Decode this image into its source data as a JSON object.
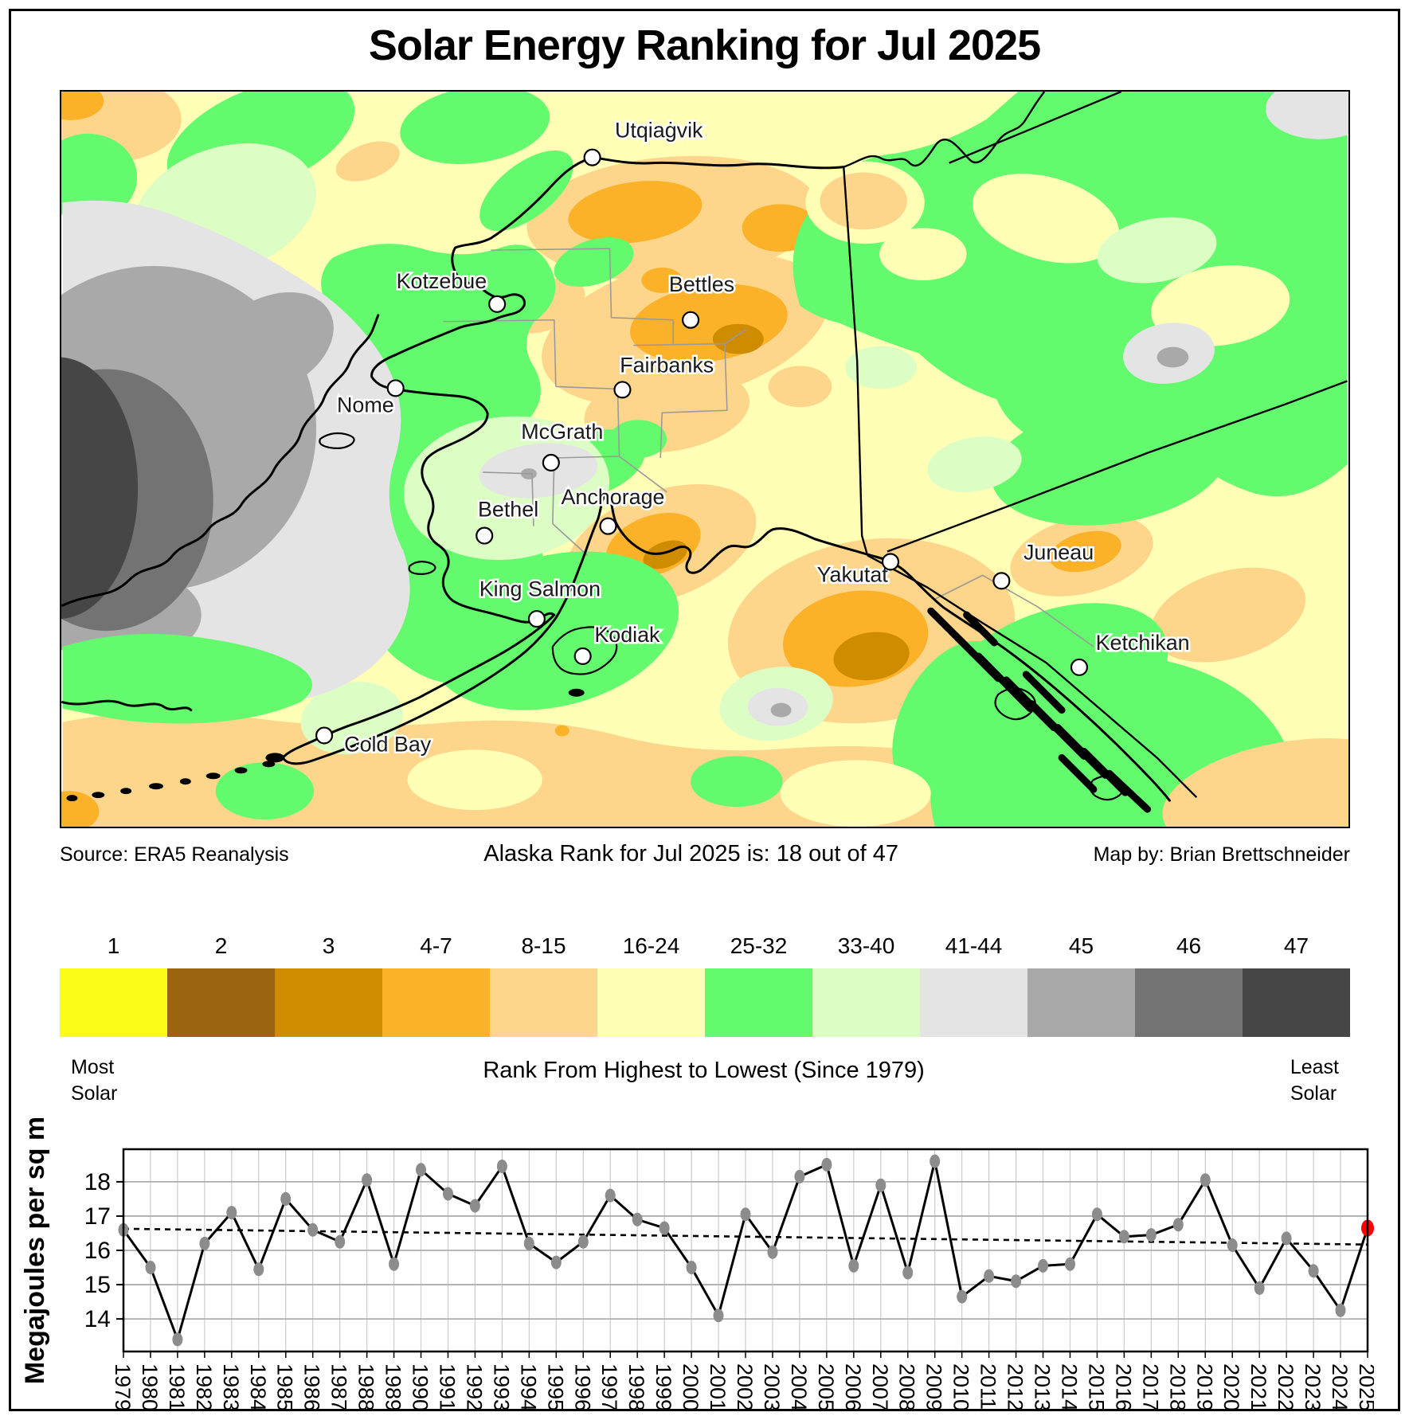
{
  "title": "Solar Energy Ranking for Jul 2025",
  "captions": {
    "source": "Source: ERA5 Reanalysis",
    "rank": "Alaska Rank for Jul 2025 is: 18 out of 47",
    "credit": "Map by: Brian Brettschneider"
  },
  "legend": {
    "items": [
      {
        "rank": "1",
        "color": "#FCFC19"
      },
      {
        "rank": "2",
        "color": "#9A6410"
      },
      {
        "rank": "3",
        "color": "#CF8C00"
      },
      {
        "rank": "4-7",
        "color": "#FBB128"
      },
      {
        "rank": "8-15",
        "color": "#FDD58B"
      },
      {
        "rank": "16-24",
        "color": "#FFFFB5"
      },
      {
        "rank": "25-32",
        "color": "#63FA6E"
      },
      {
        "rank": "33-40",
        "color": "#DCFEC5"
      },
      {
        "rank": "41-44",
        "color": "#E4E4E4"
      },
      {
        "rank": "45",
        "color": "#A9A9A9"
      },
      {
        "rank": "46",
        "color": "#737373"
      },
      {
        "rank": "47",
        "color": "#464646"
      }
    ],
    "most_line1": "Most",
    "most_line2": "Solar",
    "least_line1": "Least",
    "least_line2": "Solar",
    "axis_title": "Rank From Highest to Lowest (Since 1979)"
  },
  "map": {
    "cities": [
      {
        "name": "Utqiaġvik",
        "dot": [
          668,
          83
        ],
        "label": [
          752,
          58
        ]
      },
      {
        "name": "Kotzebue",
        "dot": [
          548,
          268
        ],
        "label": [
          478,
          248
        ]
      },
      {
        "name": "Bettles",
        "dot": [
          792,
          288
        ],
        "label": [
          806,
          252
        ]
      },
      {
        "name": "Fairbanks",
        "dot": [
          706,
          376
        ],
        "label": [
          762,
          354
        ]
      },
      {
        "name": "Nome",
        "dot": [
          420,
          374
        ],
        "label": [
          382,
          404
        ]
      },
      {
        "name": "McGrath",
        "dot": [
          616,
          468
        ],
        "label": [
          630,
          438
        ]
      },
      {
        "name": "Anchorage",
        "dot": [
          688,
          548
        ],
        "label": [
          694,
          520
        ]
      },
      {
        "name": "Bethel",
        "dot": [
          532,
          560
        ],
        "label": [
          562,
          536
        ]
      },
      {
        "name": "Yakutat",
        "dot": [
          1044,
          593
        ],
        "label": [
          996,
          618
        ]
      },
      {
        "name": "Juneau",
        "dot": [
          1184,
          617
        ],
        "label": [
          1256,
          590
        ]
      },
      {
        "name": "King Salmon",
        "dot": [
          598,
          665
        ],
        "label": [
          602,
          636
        ]
      },
      {
        "name": "Kodiak",
        "dot": [
          656,
          712
        ],
        "label": [
          712,
          694
        ]
      },
      {
        "name": "Ketchikan",
        "dot": [
          1282,
          726
        ],
        "label": [
          1362,
          704
        ]
      },
      {
        "name": "Cold Bay",
        "dot": [
          330,
          812
        ],
        "label": [
          410,
          832
        ]
      }
    ]
  },
  "chart_data": {
    "type": "line",
    "title": "",
    "xlabel": "",
    "ylabel": "Megajoules per sq m",
    "x": [
      1979,
      1980,
      1981,
      1982,
      1983,
      1984,
      1985,
      1986,
      1987,
      1988,
      1989,
      1990,
      1991,
      1992,
      1993,
      1994,
      1995,
      1996,
      1997,
      1998,
      1999,
      2000,
      2001,
      2002,
      2003,
      2004,
      2005,
      2006,
      2007,
      2008,
      2009,
      2010,
      2011,
      2012,
      2013,
      2014,
      2015,
      2016,
      2017,
      2018,
      2019,
      2020,
      2021,
      2022,
      2023,
      2024,
      2025
    ],
    "values": [
      16.6,
      15.5,
      13.4,
      16.2,
      17.1,
      15.45,
      17.5,
      16.6,
      16.25,
      18.05,
      15.6,
      18.35,
      17.65,
      17.3,
      18.45,
      16.2,
      15.65,
      16.25,
      17.6,
      16.9,
      16.65,
      15.5,
      14.1,
      17.05,
      15.95,
      18.15,
      18.5,
      15.55,
      17.9,
      15.35,
      18.6,
      14.65,
      15.25,
      15.1,
      15.55,
      15.6,
      17.05,
      16.4,
      16.45,
      16.75,
      18.05,
      16.15,
      14.9,
      16.35,
      15.4,
      14.25,
      16.65
    ],
    "yticks": [
      14,
      15,
      16,
      17,
      18
    ],
    "ylim": [
      13.05,
      18.95
    ],
    "grid": true,
    "line_color": "#000000",
    "point_color": "#8c8c8c",
    "last_point_color": "#FF0000",
    "trend_line": {
      "start_year": 1979,
      "start_value": 16.63,
      "end_year": 2025,
      "end_value": 16.17,
      "style": "dashed"
    }
  }
}
